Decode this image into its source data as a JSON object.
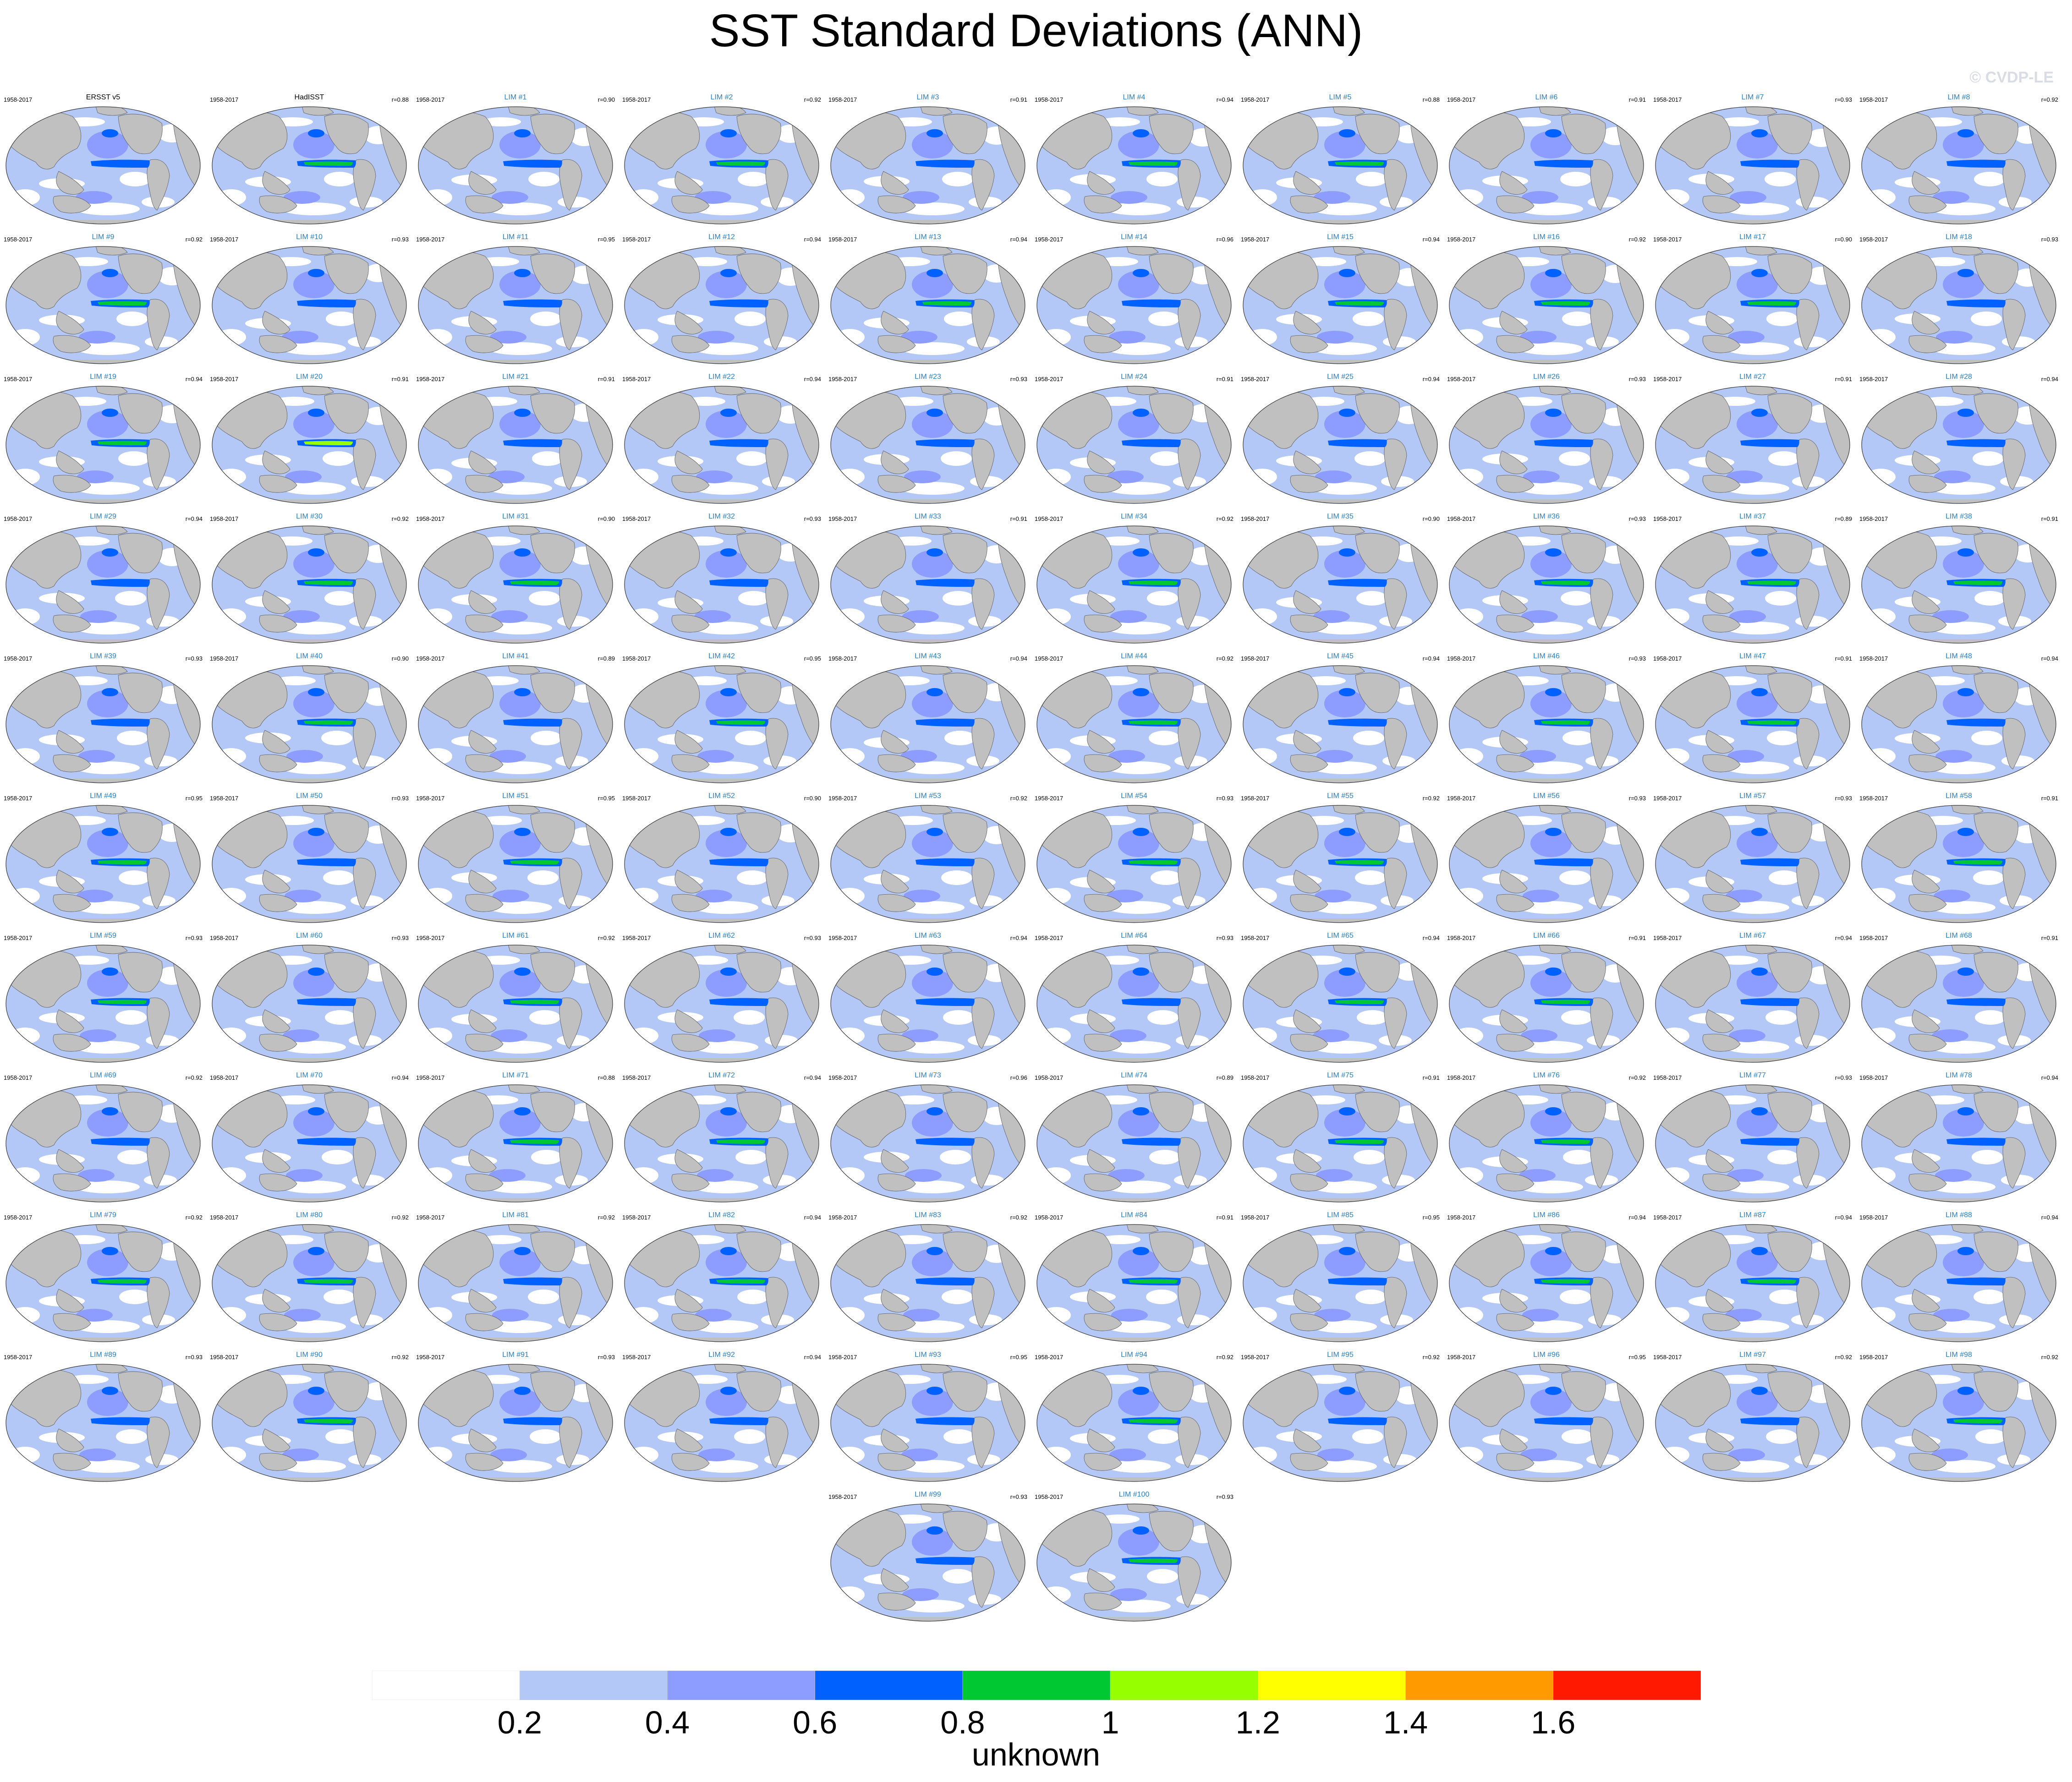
{
  "title": "SST Standard Deviations (ANN)",
  "watermark": "© CVDP-LE",
  "period": "1958-2017",
  "colorbar": {
    "levels": [
      "0.2",
      "0.4",
      "0.6",
      "0.8",
      "1",
      "1.2",
      "1.4",
      "1.6"
    ],
    "colors": [
      "#ffffff",
      "#b4c8f8",
      "#8c9cff",
      "#0061ff",
      "#00c832",
      "#96ff00",
      "#ffff00",
      "#ff9b00",
      "#ff1900"
    ],
    "units": "unknown"
  },
  "panels": [
    {
      "name": "ERSST v5",
      "corr": "",
      "type": "obs",
      "tongue": 0.7
    },
    {
      "name": "HadISST",
      "corr": "r=0.88",
      "type": "obs",
      "tongue": 0.8
    },
    {
      "name": "LIM #1",
      "corr": "r=0.90",
      "type": "lim",
      "tongue": 0.72
    },
    {
      "name": "LIM #2",
      "corr": "r=0.92",
      "type": "lim",
      "tongue": 0.85
    },
    {
      "name": "LIM #3",
      "corr": "r=0.91",
      "type": "lim",
      "tongue": 0.72
    },
    {
      "name": "LIM #4",
      "corr": "r=0.94",
      "type": "lim",
      "tongue": 0.85
    },
    {
      "name": "LIM #5",
      "corr": "r=0.88",
      "type": "lim",
      "tongue": 0.85
    },
    {
      "name": "LIM #6",
      "corr": "r=0.91",
      "type": "lim",
      "tongue": 0.72
    },
    {
      "name": "LIM #7",
      "corr": "r=0.93",
      "type": "lim",
      "tongue": 0.72
    },
    {
      "name": "LIM #8",
      "corr": "r=0.92",
      "type": "lim",
      "tongue": 0.72
    },
    {
      "name": "LIM #9",
      "corr": "r=0.92",
      "type": "lim",
      "tongue": 0.85
    },
    {
      "name": "LIM #10",
      "corr": "r=0.93",
      "type": "lim",
      "tongue": 0.72
    },
    {
      "name": "LIM #11",
      "corr": "r=0.95",
      "type": "lim",
      "tongue": 0.72
    },
    {
      "name": "LIM #12",
      "corr": "r=0.94",
      "type": "lim",
      "tongue": 0.72
    },
    {
      "name": "LIM #13",
      "corr": "r=0.94",
      "type": "lim",
      "tongue": 0.85
    },
    {
      "name": "LIM #14",
      "corr": "r=0.96",
      "type": "lim",
      "tongue": 0.72
    },
    {
      "name": "LIM #15",
      "corr": "r=0.94",
      "type": "lim",
      "tongue": 0.85
    },
    {
      "name": "LIM #16",
      "corr": "r=0.92",
      "type": "lim",
      "tongue": 0.85
    },
    {
      "name": "LIM #17",
      "corr": "r=0.90",
      "type": "lim",
      "tongue": 0.85
    },
    {
      "name": "LIM #18",
      "corr": "r=0.93",
      "type": "lim",
      "tongue": 0.72
    },
    {
      "name": "LIM #19",
      "corr": "r=0.94",
      "type": "lim",
      "tongue": 0.85
    },
    {
      "name": "LIM #20",
      "corr": "r=0.91",
      "type": "lim",
      "tongue": 1.05
    },
    {
      "name": "LIM #21",
      "corr": "r=0.91",
      "type": "lim",
      "tongue": 0.72
    },
    {
      "name": "LIM #22",
      "corr": "r=0.94",
      "type": "lim",
      "tongue": 0.72
    },
    {
      "name": "LIM #23",
      "corr": "r=0.93",
      "type": "lim",
      "tongue": 0.72
    },
    {
      "name": "LIM #24",
      "corr": "r=0.91",
      "type": "lim",
      "tongue": 0.72
    },
    {
      "name": "LIM #25",
      "corr": "r=0.94",
      "type": "lim",
      "tongue": 0.72
    },
    {
      "name": "LIM #26",
      "corr": "r=0.93",
      "type": "lim",
      "tongue": 0.72
    },
    {
      "name": "LIM #27",
      "corr": "r=0.91",
      "type": "lim",
      "tongue": 0.72
    },
    {
      "name": "LIM #28",
      "corr": "r=0.94",
      "type": "lim",
      "tongue": 0.72
    },
    {
      "name": "LIM #29",
      "corr": "r=0.94",
      "type": "lim",
      "tongue": 0.72
    },
    {
      "name": "LIM #30",
      "corr": "r=0.92",
      "type": "lim",
      "tongue": 0.85
    },
    {
      "name": "LIM #31",
      "corr": "r=0.90",
      "type": "lim",
      "tongue": 0.85
    },
    {
      "name": "LIM #32",
      "corr": "r=0.93",
      "type": "lim",
      "tongue": 0.72
    },
    {
      "name": "LIM #33",
      "corr": "r=0.91",
      "type": "lim",
      "tongue": 0.72
    },
    {
      "name": "LIM #34",
      "corr": "r=0.92",
      "type": "lim",
      "tongue": 0.85
    },
    {
      "name": "LIM #35",
      "corr": "r=0.90",
      "type": "lim",
      "tongue": 0.72
    },
    {
      "name": "LIM #36",
      "corr": "r=0.93",
      "type": "lim",
      "tongue": 0.85
    },
    {
      "name": "LIM #37",
      "corr": "r=0.89",
      "type": "lim",
      "tongue": 0.85
    },
    {
      "name": "LIM #38",
      "corr": "r=0.91",
      "type": "lim",
      "tongue": 0.85
    },
    {
      "name": "LIM #39",
      "corr": "r=0.93",
      "type": "lim",
      "tongue": 0.72
    },
    {
      "name": "LIM #40",
      "corr": "r=0.90",
      "type": "lim",
      "tongue": 0.85
    },
    {
      "name": "LIM #41",
      "corr": "r=0.89",
      "type": "lim",
      "tongue": 0.72
    },
    {
      "name": "LIM #42",
      "corr": "r=0.95",
      "type": "lim",
      "tongue": 0.85
    },
    {
      "name": "LIM #43",
      "corr": "r=0.94",
      "type": "lim",
      "tongue": 0.72
    },
    {
      "name": "LIM #44",
      "corr": "r=0.92",
      "type": "lim",
      "tongue": 0.85
    },
    {
      "name": "LIM #45",
      "corr": "r=0.94",
      "type": "lim",
      "tongue": 0.72
    },
    {
      "name": "LIM #46",
      "corr": "r=0.93",
      "type": "lim",
      "tongue": 0.85
    },
    {
      "name": "LIM #47",
      "corr": "r=0.91",
      "type": "lim",
      "tongue": 0.85
    },
    {
      "name": "LIM #48",
      "corr": "r=0.94",
      "type": "lim",
      "tongue": 0.72
    },
    {
      "name": "LIM #49",
      "corr": "r=0.95",
      "type": "lim",
      "tongue": 0.85
    },
    {
      "name": "LIM #50",
      "corr": "r=0.93",
      "type": "lim",
      "tongue": 0.72
    },
    {
      "name": "LIM #51",
      "corr": "r=0.95",
      "type": "lim",
      "tongue": 0.85
    },
    {
      "name": "LIM #52",
      "corr": "r=0.90",
      "type": "lim",
      "tongue": 0.72
    },
    {
      "name": "LIM #53",
      "corr": "r=0.92",
      "type": "lim",
      "tongue": 0.72
    },
    {
      "name": "LIM #54",
      "corr": "r=0.93",
      "type": "lim",
      "tongue": 0.85
    },
    {
      "name": "LIM #55",
      "corr": "r=0.92",
      "type": "lim",
      "tongue": 0.85
    },
    {
      "name": "LIM #56",
      "corr": "r=0.93",
      "type": "lim",
      "tongue": 0.72
    },
    {
      "name": "LIM #57",
      "corr": "r=0.93",
      "type": "lim",
      "tongue": 0.72
    },
    {
      "name": "LIM #58",
      "corr": "r=0.91",
      "type": "lim",
      "tongue": 0.85
    },
    {
      "name": "LIM #59",
      "corr": "r=0.93",
      "type": "lim",
      "tongue": 0.85
    },
    {
      "name": "LIM #60",
      "corr": "r=0.93",
      "type": "lim",
      "tongue": 0.72
    },
    {
      "name": "LIM #61",
      "corr": "r=0.92",
      "type": "lim",
      "tongue": 0.85
    },
    {
      "name": "LIM #62",
      "corr": "r=0.93",
      "type": "lim",
      "tongue": 0.72
    },
    {
      "name": "LIM #63",
      "corr": "r=0.94",
      "type": "lim",
      "tongue": 0.72
    },
    {
      "name": "LIM #64",
      "corr": "r=0.93",
      "type": "lim",
      "tongue": 0.72
    },
    {
      "name": "LIM #65",
      "corr": "r=0.94",
      "type": "lim",
      "tongue": 0.85
    },
    {
      "name": "LIM #66",
      "corr": "r=0.91",
      "type": "lim",
      "tongue": 0.85
    },
    {
      "name": "LIM #67",
      "corr": "r=0.94",
      "type": "lim",
      "tongue": 0.72
    },
    {
      "name": "LIM #68",
      "corr": "r=0.91",
      "type": "lim",
      "tongue": 0.72
    },
    {
      "name": "LIM #69",
      "corr": "r=0.92",
      "type": "lim",
      "tongue": 0.72
    },
    {
      "name": "LIM #70",
      "corr": "r=0.94",
      "type": "lim",
      "tongue": 0.72
    },
    {
      "name": "LIM #71",
      "corr": "r=0.88",
      "type": "lim",
      "tongue": 0.85
    },
    {
      "name": "LIM #72",
      "corr": "r=0.94",
      "type": "lim",
      "tongue": 0.85
    },
    {
      "name": "LIM #73",
      "corr": "r=0.96",
      "type": "lim",
      "tongue": 0.72
    },
    {
      "name": "LIM #74",
      "corr": "r=0.89",
      "type": "lim",
      "tongue": 0.72
    },
    {
      "name": "LIM #75",
      "corr": "r=0.91",
      "type": "lim",
      "tongue": 0.85
    },
    {
      "name": "LIM #76",
      "corr": "r=0.92",
      "type": "lim",
      "tongue": 0.85
    },
    {
      "name": "LIM #77",
      "corr": "r=0.93",
      "type": "lim",
      "tongue": 0.72
    },
    {
      "name": "LIM #78",
      "corr": "r=0.94",
      "type": "lim",
      "tongue": 0.72
    },
    {
      "name": "LIM #79",
      "corr": "r=0.92",
      "type": "lim",
      "tongue": 0.85
    },
    {
      "name": "LIM #80",
      "corr": "r=0.92",
      "type": "lim",
      "tongue": 0.85
    },
    {
      "name": "LIM #81",
      "corr": "r=0.92",
      "type": "lim",
      "tongue": 0.72
    },
    {
      "name": "LIM #82",
      "corr": "r=0.94",
      "type": "lim",
      "tongue": 0.85
    },
    {
      "name": "LIM #83",
      "corr": "r=0.92",
      "type": "lim",
      "tongue": 0.72
    },
    {
      "name": "LIM #84",
      "corr": "r=0.91",
      "type": "lim",
      "tongue": 0.85
    },
    {
      "name": "LIM #85",
      "corr": "r=0.95",
      "type": "lim",
      "tongue": 0.72
    },
    {
      "name": "LIM #86",
      "corr": "r=0.94",
      "type": "lim",
      "tongue": 0.85
    },
    {
      "name": "LIM #87",
      "corr": "r=0.94",
      "type": "lim",
      "tongue": 0.85
    },
    {
      "name": "LIM #88",
      "corr": "r=0.94",
      "type": "lim",
      "tongue": 0.72
    },
    {
      "name": "LIM #89",
      "corr": "r=0.93",
      "type": "lim",
      "tongue": 0.72
    },
    {
      "name": "LIM #90",
      "corr": "r=0.92",
      "type": "lim",
      "tongue": 0.85
    },
    {
      "name": "LIM #91",
      "corr": "r=0.93",
      "type": "lim",
      "tongue": 0.72
    },
    {
      "name": "LIM #92",
      "corr": "r=0.94",
      "type": "lim",
      "tongue": 0.72
    },
    {
      "name": "LIM #93",
      "corr": "r=0.95",
      "type": "lim",
      "tongue": 0.72
    },
    {
      "name": "LIM #94",
      "corr": "r=0.92",
      "type": "lim",
      "tongue": 0.85
    },
    {
      "name": "LIM #95",
      "corr": "r=0.92",
      "type": "lim",
      "tongue": 0.72
    },
    {
      "name": "LIM #96",
      "corr": "r=0.95",
      "type": "lim",
      "tongue": 0.72
    },
    {
      "name": "LIM #97",
      "corr": "r=0.92",
      "type": "lim",
      "tongue": 0.72
    },
    {
      "name": "LIM #98",
      "corr": "r=0.92",
      "type": "lim",
      "tongue": 0.85
    },
    {
      "name": "LIM #99",
      "corr": "r=0.93",
      "type": "lim",
      "tongue": 0.72
    },
    {
      "name": "LIM #100",
      "corr": "r=0.93",
      "type": "lim",
      "tongue": 0.85
    }
  ]
}
